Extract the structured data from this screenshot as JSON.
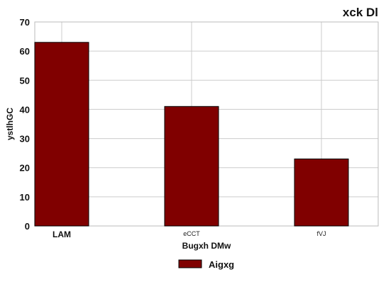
{
  "chart_data": {
    "type": "bar",
    "title": "xck Dl",
    "xlabel": "Bugxh  DMw",
    "ylabel": "ystlhGC",
    "categories": [
      "LAM",
      "eCCT",
      "fVJ"
    ],
    "series": [
      {
        "name": "Aigxg",
        "values": [
          63,
          41,
          23
        ]
      }
    ],
    "ylim": [
      0,
      70
    ],
    "yticks": [
      0,
      10,
      20,
      30,
      40,
      50,
      60,
      70
    ],
    "grid": true,
    "legend": "bottom-center",
    "colors": {
      "bar": "#800000",
      "bar_edge": "#000000",
      "grid": "#cccccc",
      "axes": "#bbbbbb"
    }
  }
}
